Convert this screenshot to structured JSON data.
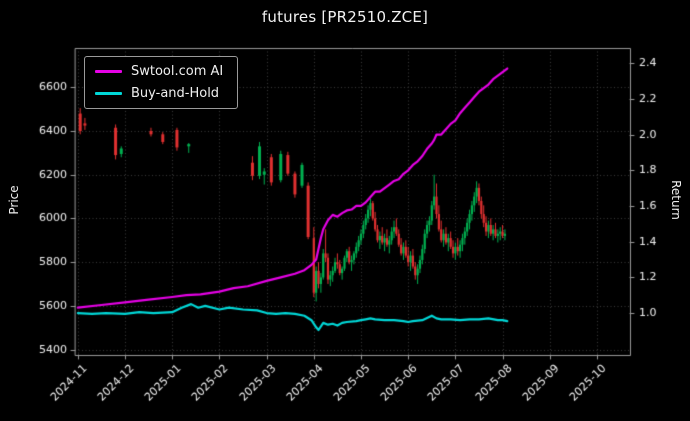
{
  "title": "futures [PR2510.ZCE]",
  "legend": {
    "series": [
      {
        "label": "Swtool.com AI",
        "color": "#e602e6"
      },
      {
        "label": "Buy-and-Hold",
        "color": "#00d8d8"
      }
    ]
  },
  "chart_data": {
    "type": "candlestick+line",
    "title": "futures [PR2510.ZCE]",
    "background": "#000000",
    "grid_color": "#3c3c3c",
    "spine_color": "#9a9a9a",
    "text_color": "#f0f0f0",
    "legend_position": "upper-left",
    "x_axis": {
      "label": "",
      "tick_labels": [
        "2024-11",
        "2024-12",
        "2025-01",
        "2025-02",
        "2025-03",
        "2025-04",
        "2025-05",
        "2025-06",
        "2025-07",
        "2025-08",
        "2025-09",
        "2025-10"
      ],
      "tick_positions": [
        0,
        1,
        2,
        3,
        4,
        5,
        6,
        7,
        8,
        9,
        10,
        11
      ],
      "range": [
        -0.06,
        11.7
      ]
    },
    "price_axis": {
      "label": "Price",
      "ticks": [
        5400,
        5600,
        5800,
        6000,
        6200,
        6400,
        6600
      ],
      "range": [
        5375,
        6780
      ]
    },
    "return_axis": {
      "label": "Return",
      "ticks": [
        1.0,
        1.2,
        1.4,
        1.6,
        1.8,
        2.0,
        2.2,
        2.4
      ],
      "range": [
        0.765,
        2.485
      ]
    },
    "candles": {
      "up_color": "#00b050",
      "down_color": "#e03030",
      "body_width_default": 2.2,
      "data": [
        [
          0.05,
          6480,
          6505,
          6385,
          6400,
          3
        ],
        [
          0.15,
          6435,
          6460,
          6405,
          6425,
          3
        ],
        [
          0.8,
          6415,
          6430,
          6270,
          6290,
          3
        ],
        [
          0.92,
          6295,
          6330,
          6280,
          6320,
          3
        ],
        [
          1.55,
          6400,
          6415,
          6375,
          6385,
          3
        ],
        [
          1.8,
          6385,
          6395,
          6340,
          6350,
          3
        ],
        [
          2.1,
          6405,
          6415,
          6310,
          6325,
          3
        ],
        [
          2.35,
          6330,
          6345,
          6300,
          6340,
          3
        ],
        [
          3.7,
          6255,
          6285,
          6175,
          6195,
          3
        ],
        [
          3.85,
          6195,
          6350,
          6180,
          6330,
          3
        ],
        [
          3.95,
          6200,
          6230,
          6155,
          6215,
          3
        ],
        [
          4.1,
          6280,
          6295,
          6150,
          6165,
          3
        ],
        [
          4.3,
          6175,
          6310,
          6165,
          6295,
          3
        ],
        [
          4.45,
          6290,
          6305,
          6195,
          6205,
          3
        ],
        [
          4.6,
          6205,
          6215,
          6095,
          6110,
          3
        ],
        [
          4.75,
          6150,
          6255,
          6140,
          6245,
          3
        ],
        [
          4.88,
          6150,
          6165,
          5905,
          5915,
          3
        ],
        [
          5.0,
          5910,
          5960,
          5640,
          5660
        ],
        [
          5.05,
          5660,
          5780,
          5620,
          5760
        ],
        [
          5.1,
          5760,
          5800,
          5680,
          5700
        ],
        [
          5.15,
          5700,
          5750,
          5660,
          5730
        ],
        [
          5.2,
          5730,
          5860,
          5720,
          5840
        ],
        [
          5.25,
          5840,
          5950,
          5800,
          5820
        ],
        [
          5.3,
          5820,
          5840,
          5700,
          5720
        ],
        [
          5.35,
          5720,
          5760,
          5690,
          5740
        ],
        [
          5.4,
          5740,
          5780,
          5710,
          5760
        ],
        [
          5.45,
          5760,
          5820,
          5750,
          5800
        ],
        [
          5.5,
          5800,
          5840,
          5770,
          5790
        ],
        [
          5.55,
          5790,
          5810,
          5740,
          5750
        ],
        [
          5.6,
          5750,
          5780,
          5720,
          5770
        ],
        [
          5.65,
          5770,
          5830,
          5760,
          5820
        ],
        [
          5.7,
          5820,
          5860,
          5800,
          5850
        ],
        [
          5.75,
          5850,
          5870,
          5790,
          5800
        ],
        [
          5.8,
          5800,
          5830,
          5760,
          5810
        ],
        [
          5.85,
          5810,
          5850,
          5790,
          5840
        ],
        [
          5.9,
          5840,
          5890,
          5820,
          5870
        ],
        [
          5.95,
          5870,
          5920,
          5850,
          5900
        ],
        [
          6.0,
          5900,
          5950,
          5880,
          5930
        ],
        [
          6.05,
          5930,
          5990,
          5910,
          5970
        ],
        [
          6.1,
          5970,
          6020,
          5950,
          6000
        ],
        [
          6.15,
          6000,
          6060,
          5980,
          6040
        ],
        [
          6.2,
          6040,
          6090,
          6010,
          6070
        ],
        [
          6.25,
          6070,
          6080,
          5990,
          6000
        ],
        [
          6.3,
          6000,
          6030,
          5940,
          5950
        ],
        [
          6.35,
          5950,
          5970,
          5890,
          5900
        ],
        [
          6.4,
          5900,
          5940,
          5860,
          5920
        ],
        [
          6.45,
          5920,
          5960,
          5880,
          5890
        ],
        [
          6.5,
          5890,
          5930,
          5850,
          5910
        ],
        [
          6.55,
          5910,
          5950,
          5870,
          5880
        ],
        [
          6.6,
          5880,
          5920,
          5840,
          5900
        ],
        [
          6.65,
          5900,
          5960,
          5880,
          5940
        ],
        [
          6.7,
          5940,
          5990,
          5910,
          5960
        ],
        [
          6.75,
          5960,
          6000,
          5920,
          5930
        ],
        [
          6.8,
          5930,
          5950,
          5870,
          5880
        ],
        [
          6.85,
          5880,
          5910,
          5830,
          5840
        ],
        [
          6.9,
          5840,
          5890,
          5810,
          5870
        ],
        [
          6.95,
          5870,
          5900,
          5820,
          5830
        ],
        [
          7.0,
          5830,
          5870,
          5780,
          5800
        ],
        [
          7.05,
          5800,
          5850,
          5760,
          5830
        ],
        [
          7.1,
          5830,
          5860,
          5770,
          5780
        ],
        [
          7.15,
          5780,
          5800,
          5720,
          5740
        ],
        [
          7.2,
          5740,
          5790,
          5700,
          5770
        ],
        [
          7.25,
          5770,
          5830,
          5750,
          5810
        ],
        [
          7.3,
          5810,
          5880,
          5790,
          5860
        ],
        [
          7.35,
          5860,
          5950,
          5840,
          5930
        ],
        [
          7.4,
          5930,
          5990,
          5910,
          5970
        ],
        [
          7.45,
          5970,
          6010,
          5940,
          5990
        ],
        [
          7.5,
          5990,
          6080,
          5970,
          6060
        ],
        [
          7.55,
          6060,
          6200,
          6040,
          6100
        ],
        [
          7.6,
          6100,
          6160,
          6000,
          6020
        ],
        [
          7.65,
          6020,
          6060,
          5940,
          5950
        ],
        [
          7.7,
          5950,
          5990,
          5890,
          5900
        ],
        [
          7.75,
          5900,
          5950,
          5870,
          5930
        ],
        [
          7.8,
          5930,
          5960,
          5880,
          5890
        ],
        [
          7.85,
          5890,
          5930,
          5850,
          5910
        ],
        [
          7.9,
          5910,
          5940,
          5860,
          5870
        ],
        [
          7.95,
          5870,
          5900,
          5820,
          5840
        ],
        [
          8.0,
          5840,
          5890,
          5810,
          5870
        ],
        [
          8.05,
          5870,
          5910,
          5830,
          5850
        ],
        [
          8.1,
          5850,
          5900,
          5820,
          5880
        ],
        [
          8.15,
          5880,
          5930,
          5850,
          5910
        ],
        [
          8.2,
          5910,
          5960,
          5880,
          5940
        ],
        [
          8.25,
          5940,
          6000,
          5920,
          5980
        ],
        [
          8.3,
          5980,
          6040,
          5950,
          6020
        ],
        [
          8.35,
          6020,
          6080,
          5990,
          6060
        ],
        [
          8.4,
          6060,
          6120,
          6030,
          6100
        ],
        [
          8.45,
          6100,
          6170,
          6070,
          6140
        ],
        [
          8.5,
          6140,
          6160,
          6060,
          6080
        ],
        [
          8.55,
          6080,
          6100,
          6000,
          6020
        ],
        [
          8.6,
          6020,
          6060,
          5960,
          5980
        ],
        [
          8.65,
          5980,
          6010,
          5920,
          5940
        ],
        [
          8.7,
          5940,
          5990,
          5910,
          5970
        ],
        [
          8.75,
          5970,
          6000,
          5920,
          5930
        ],
        [
          8.8,
          5930,
          5970,
          5900,
          5950
        ],
        [
          8.85,
          5950,
          5980,
          5910,
          5920
        ],
        [
          8.9,
          5920,
          5950,
          5890,
          5930
        ],
        [
          8.95,
          5930,
          5960,
          5900,
          5940
        ],
        [
          9.0,
          5940,
          5970,
          5910,
          5920
        ],
        [
          9.05,
          5920,
          5950,
          5900,
          5930
        ]
      ]
    },
    "series": [
      {
        "name": "Swtool.com AI",
        "axis": "return",
        "color": "#e602e6",
        "width": 2.2,
        "points": [
          [
            0,
            1.03
          ],
          [
            0.5,
            1.045
          ],
          [
            1,
            1.06
          ],
          [
            1.5,
            1.075
          ],
          [
            2,
            1.09
          ],
          [
            2.3,
            1.1
          ],
          [
            2.6,
            1.105
          ],
          [
            3,
            1.12
          ],
          [
            3.3,
            1.14
          ],
          [
            3.6,
            1.15
          ],
          [
            4,
            1.18
          ],
          [
            4.3,
            1.2
          ],
          [
            4.6,
            1.22
          ],
          [
            4.8,
            1.24
          ],
          [
            4.95,
            1.27
          ],
          [
            5.05,
            1.3
          ],
          [
            5.1,
            1.36
          ],
          [
            5.15,
            1.42
          ],
          [
            5.2,
            1.47
          ],
          [
            5.3,
            1.52
          ],
          [
            5.4,
            1.55
          ],
          [
            5.5,
            1.54
          ],
          [
            5.6,
            1.56
          ],
          [
            5.7,
            1.575
          ],
          [
            5.8,
            1.58
          ],
          [
            5.9,
            1.6
          ],
          [
            6.0,
            1.6
          ],
          [
            6.1,
            1.62
          ],
          [
            6.2,
            1.65
          ],
          [
            6.3,
            1.68
          ],
          [
            6.4,
            1.68
          ],
          [
            6.5,
            1.7
          ],
          [
            6.6,
            1.72
          ],
          [
            6.7,
            1.74
          ],
          [
            6.8,
            1.75
          ],
          [
            6.9,
            1.78
          ],
          [
            7.0,
            1.8
          ],
          [
            7.1,
            1.83
          ],
          [
            7.2,
            1.85
          ],
          [
            7.3,
            1.88
          ],
          [
            7.4,
            1.92
          ],
          [
            7.5,
            1.95
          ],
          [
            7.55,
            1.97
          ],
          [
            7.6,
            2.0
          ],
          [
            7.7,
            2.0
          ],
          [
            7.8,
            2.03
          ],
          [
            7.9,
            2.06
          ],
          [
            8.0,
            2.08
          ],
          [
            8.1,
            2.12
          ],
          [
            8.2,
            2.15
          ],
          [
            8.3,
            2.18
          ],
          [
            8.4,
            2.21
          ],
          [
            8.5,
            2.24
          ],
          [
            8.6,
            2.26
          ],
          [
            8.7,
            2.28
          ],
          [
            8.8,
            2.31
          ],
          [
            8.9,
            2.33
          ],
          [
            9.0,
            2.35
          ],
          [
            9.1,
            2.37
          ]
        ]
      },
      {
        "name": "Buy-and-Hold",
        "axis": "return",
        "color": "#00d8d8",
        "width": 2.2,
        "points": [
          [
            0,
            1.0
          ],
          [
            0.3,
            0.995
          ],
          [
            0.6,
            1.0
          ],
          [
            1,
            0.995
          ],
          [
            1.3,
            1.005
          ],
          [
            1.6,
            1.0
          ],
          [
            2,
            1.005
          ],
          [
            2.2,
            1.03
          ],
          [
            2.4,
            1.05
          ],
          [
            2.55,
            1.03
          ],
          [
            2.7,
            1.04
          ],
          [
            3,
            1.02
          ],
          [
            3.2,
            1.03
          ],
          [
            3.5,
            1.02
          ],
          [
            3.8,
            1.015
          ],
          [
            4,
            1.0
          ],
          [
            4.2,
            0.995
          ],
          [
            4.4,
            1.0
          ],
          [
            4.6,
            0.995
          ],
          [
            4.8,
            0.985
          ],
          [
            4.95,
            0.96
          ],
          [
            5.05,
            0.92
          ],
          [
            5.1,
            0.905
          ],
          [
            5.2,
            0.945
          ],
          [
            5.3,
            0.935
          ],
          [
            5.4,
            0.94
          ],
          [
            5.5,
            0.93
          ],
          [
            5.6,
            0.945
          ],
          [
            5.7,
            0.95
          ],
          [
            5.9,
            0.955
          ],
          [
            6.0,
            0.96
          ],
          [
            6.1,
            0.965
          ],
          [
            6.2,
            0.97
          ],
          [
            6.3,
            0.965
          ],
          [
            6.5,
            0.96
          ],
          [
            6.7,
            0.96
          ],
          [
            6.9,
            0.955
          ],
          [
            7.0,
            0.95
          ],
          [
            7.1,
            0.955
          ],
          [
            7.3,
            0.96
          ],
          [
            7.5,
            0.985
          ],
          [
            7.6,
            0.97
          ],
          [
            7.7,
            0.965
          ],
          [
            7.9,
            0.965
          ],
          [
            8.1,
            0.96
          ],
          [
            8.3,
            0.965
          ],
          [
            8.5,
            0.965
          ],
          [
            8.7,
            0.97
          ],
          [
            8.9,
            0.96
          ],
          [
            9.0,
            0.96
          ],
          [
            9.1,
            0.955
          ]
        ]
      }
    ]
  }
}
